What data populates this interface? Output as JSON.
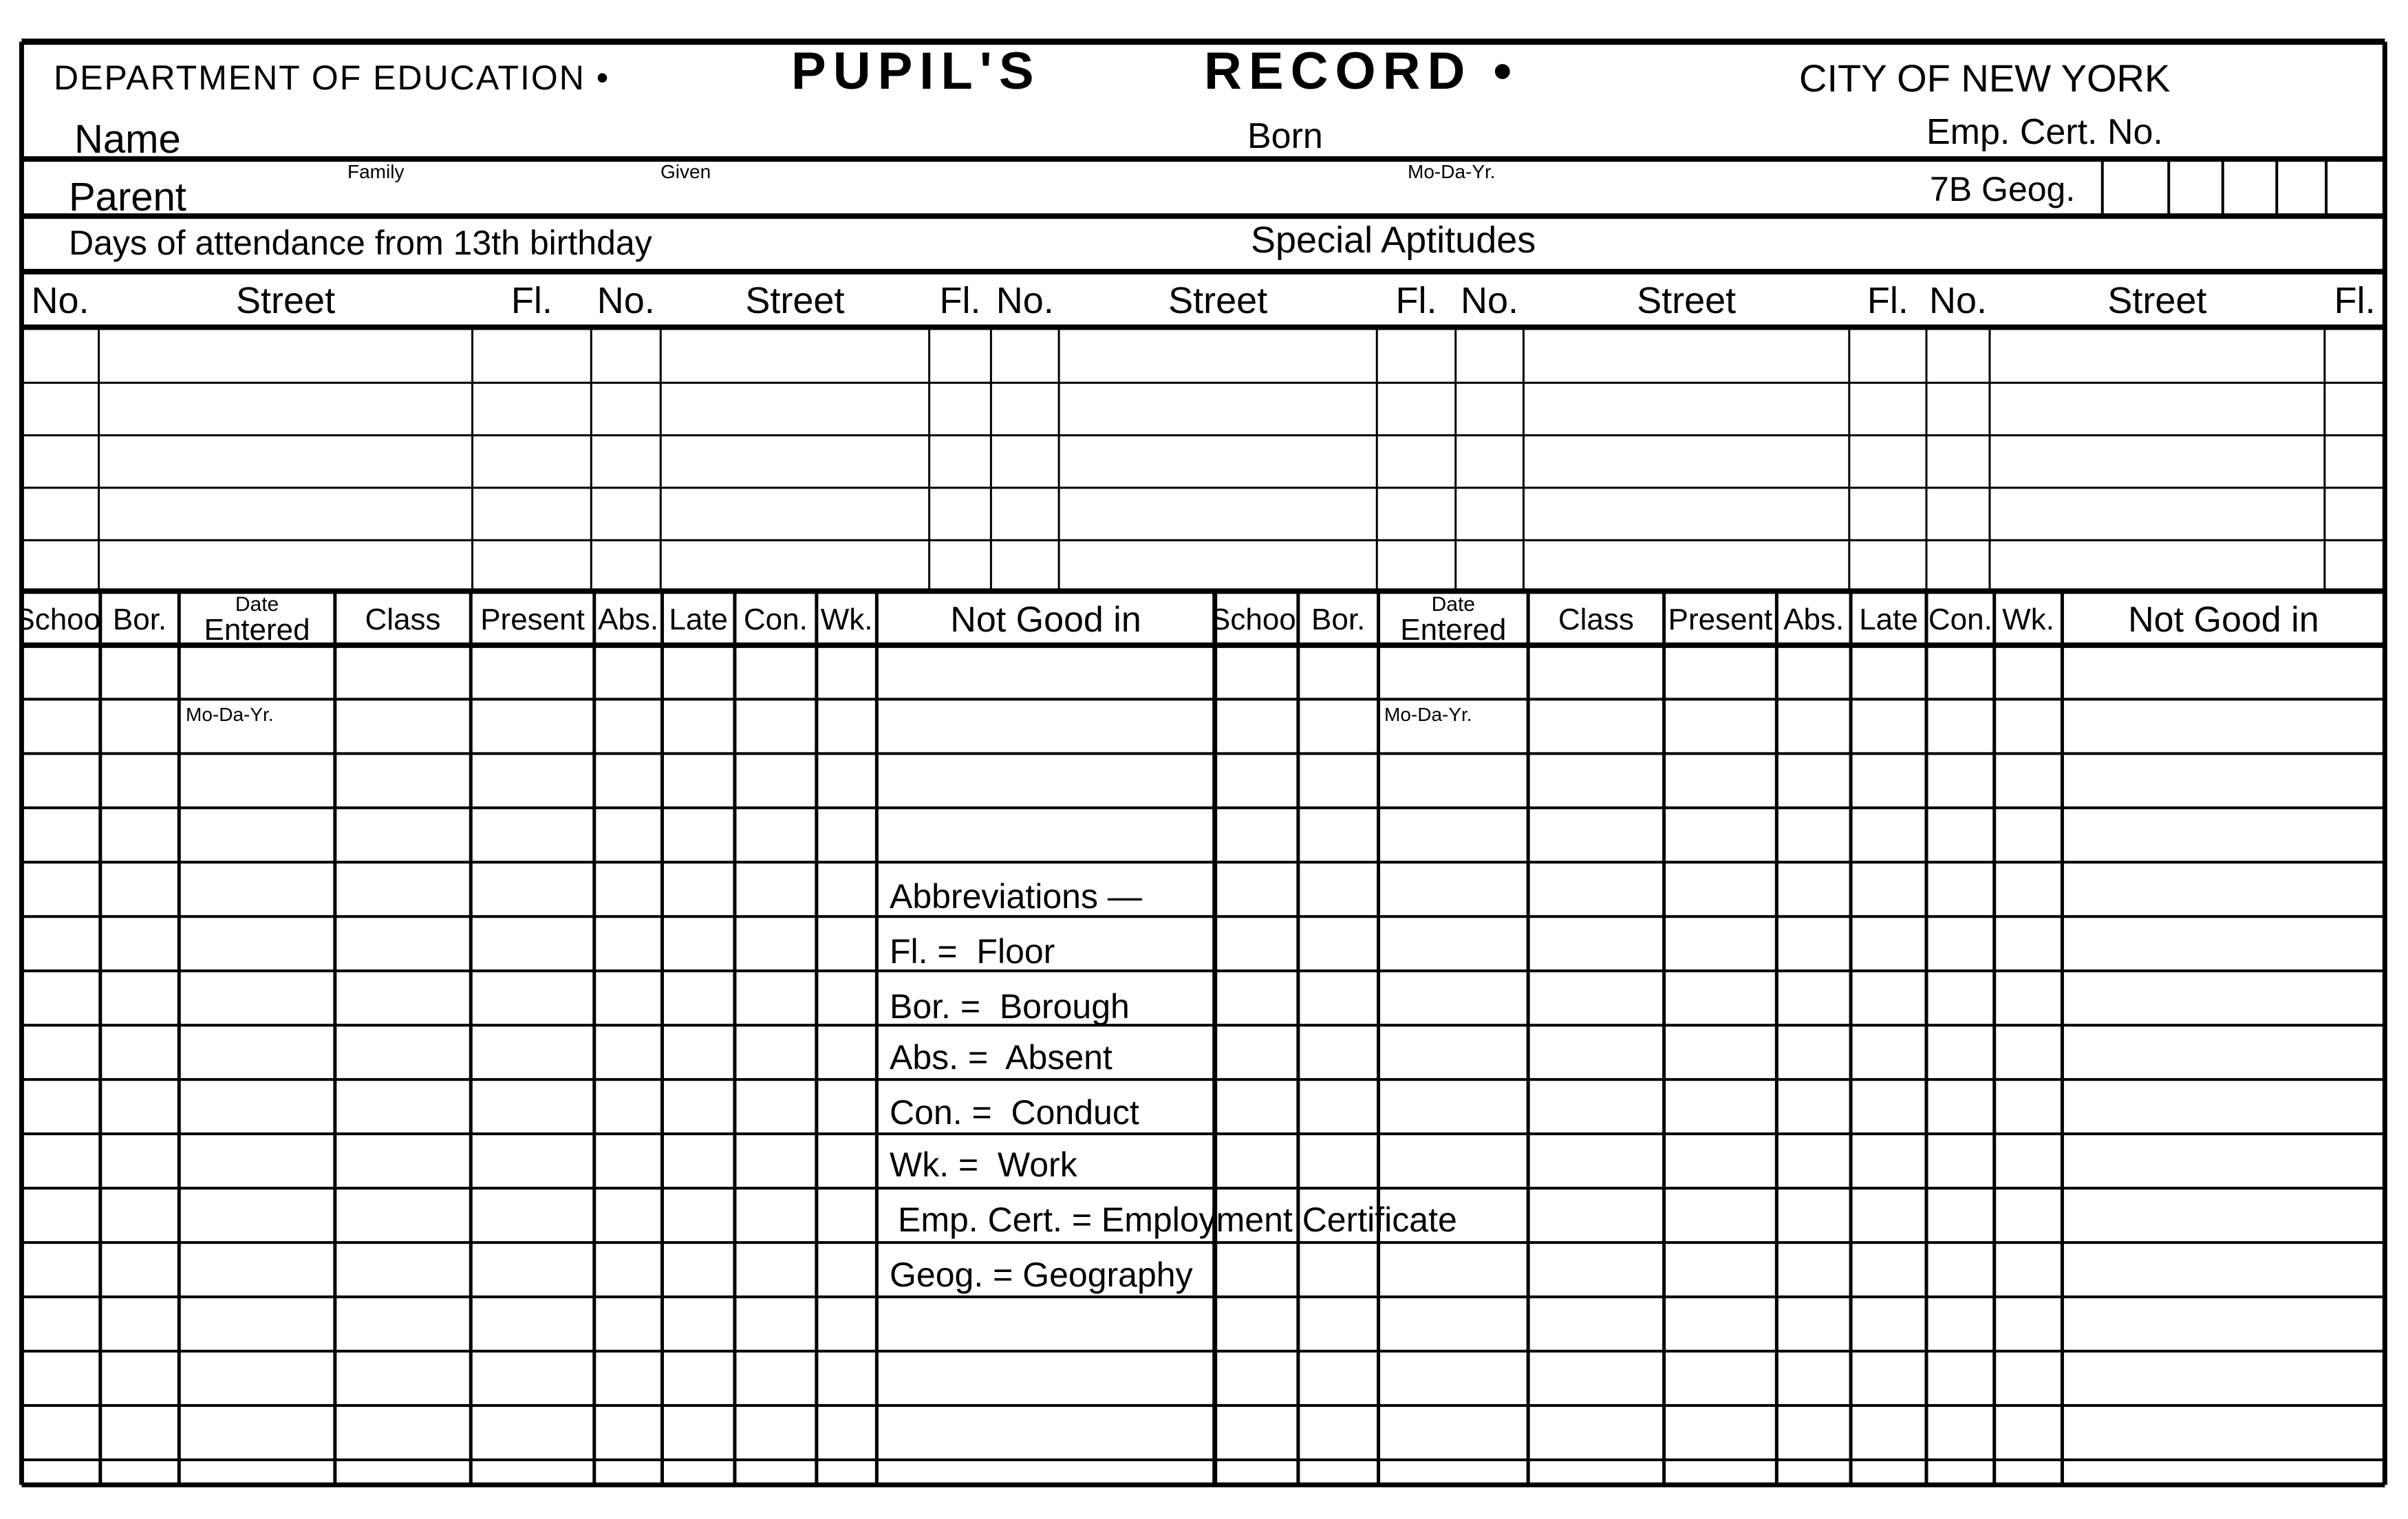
{
  "header": {
    "department": "DEPARTMENT OF EDUCATION •",
    "title_word1": "PUPIL'S",
    "title_word2": "RECORD •",
    "city": "CITY OF NEW YORK"
  },
  "fields": {
    "name": "Name",
    "family": "Family",
    "given": "Given",
    "born": "Born",
    "born_format": "Mo-Da-Yr.",
    "emp_cert": "Emp. Cert. No.",
    "parent": "Parent",
    "geog": "7B Geog.",
    "days_attendance": "Days of attendance from 13th birthday",
    "special_aptitudes": "Special Aptitudes"
  },
  "address_headers": [
    "No.",
    "Street",
    "Fl.",
    "No.",
    "Street",
    "Fl.",
    "No.",
    "Street",
    "Fl.",
    "No.",
    "Street",
    "Fl.",
    "No.",
    "Street",
    "Fl."
  ],
  "record_headers": [
    {
      "label": "School"
    },
    {
      "label": "Bor."
    },
    {
      "label": "Entered",
      "top": "Date"
    },
    {
      "label": "Class"
    },
    {
      "label": "Present"
    },
    {
      "label": "Abs."
    },
    {
      "label": "Late"
    },
    {
      "label": "Con."
    },
    {
      "label": "Wk."
    },
    {
      "label": "Not Good in"
    },
    {
      "label": "School"
    },
    {
      "label": "Bor."
    },
    {
      "label": "Entered",
      "top": "Date"
    },
    {
      "label": "Class"
    },
    {
      "label": "Present"
    },
    {
      "label": "Abs."
    },
    {
      "label": "Late"
    },
    {
      "label": "Con."
    },
    {
      "label": "Wk."
    },
    {
      "label": "Not Good in"
    }
  ],
  "date_format_left": "Mo-Da-Yr.",
  "date_format_right": "Mo-Da-Yr.",
  "abbreviations": {
    "title": "Abbreviations —",
    "items": [
      "Fl. =  Floor",
      "Bor. =  Borough",
      "Abs. =  Absent",
      "Con. =  Conduct",
      "Wk. =  Work",
      "Emp. Cert. = Employment Certificate",
      "Geog. = Geography"
    ]
  }
}
